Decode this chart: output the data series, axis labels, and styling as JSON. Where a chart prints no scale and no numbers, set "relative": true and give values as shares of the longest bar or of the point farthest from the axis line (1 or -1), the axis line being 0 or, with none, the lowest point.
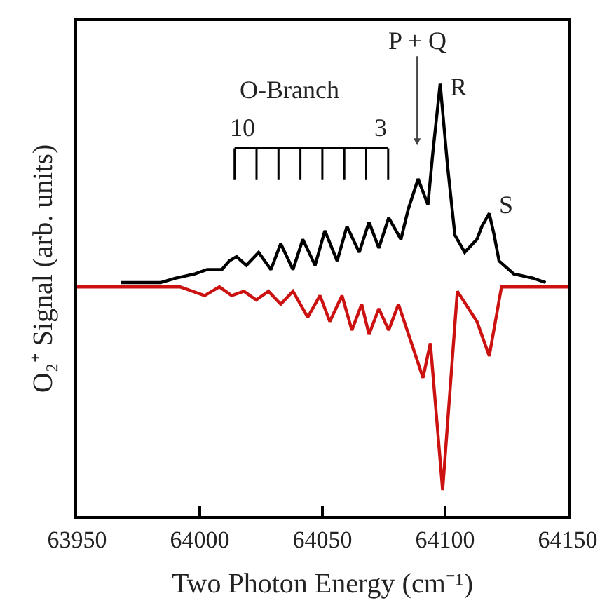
{
  "chart_data": {
    "type": "line",
    "relative": true,
    "xlabel": "Two Photon Energy (cm⁻¹)",
    "ylabel": "O₂⁺ Signal (arb. units)",
    "xlim": [
      63950,
      64150
    ],
    "xticks": [
      63950,
      64000,
      64050,
      64100,
      64150
    ],
    "tick_labels": "x",
    "line_style": "solid",
    "marker": "none",
    "series": [
      {
        "color": "#000000",
        "x": [
          63968,
          63975,
          63984,
          63990,
          63998,
          64003,
          64009,
          64012,
          64015,
          64019,
          64024,
          64029,
          64033,
          64038,
          64042,
          64047,
          64051,
          64056,
          64060,
          64065,
          64069,
          64073,
          64077,
          64082,
          64085,
          64089,
          64093,
          64095,
          64098,
          64101,
          64104,
          64108,
          64113,
          64115,
          64118,
          64120,
          64122,
          64128,
          64136,
          64141
        ],
        "values": [
          0.54,
          0.54,
          0.54,
          0.55,
          0.56,
          0.57,
          0.57,
          0.59,
          0.6,
          0.58,
          0.61,
          0.57,
          0.63,
          0.57,
          0.64,
          0.58,
          0.66,
          0.59,
          0.67,
          0.61,
          0.68,
          0.62,
          0.69,
          0.64,
          0.71,
          0.78,
          0.72,
          0.84,
          1.0,
          0.81,
          0.65,
          0.61,
          0.64,
          0.67,
          0.7,
          0.65,
          0.59,
          0.56,
          0.55,
          0.54
        ]
      },
      {
        "color": "#cc1111",
        "x": [
          63950,
          63986,
          63992,
          64002,
          64008,
          64013,
          64018,
          64023,
          64028,
          64033,
          64038,
          64044,
          64049,
          64053,
          64058,
          64062,
          64066,
          64069,
          64073,
          64077,
          64081,
          64091,
          64094,
          64099,
          64105,
          64113,
          64118,
          64123,
          64126,
          64150
        ],
        "values": [
          0.53,
          0.53,
          0.53,
          0.51,
          0.53,
          0.51,
          0.52,
          0.5,
          0.52,
          0.49,
          0.52,
          0.46,
          0.51,
          0.45,
          0.51,
          0.43,
          0.49,
          0.42,
          0.48,
          0.43,
          0.49,
          0.32,
          0.4,
          0.06,
          0.52,
          0.45,
          0.37,
          0.53,
          0.53,
          0.53
        ]
      }
    ],
    "annotations": [
      "O-Branch",
      "10",
      "3",
      "P + Q",
      {
        "text": "R",
        "x": 64098,
        "y": 1.0
      },
      {
        "text": "S",
        "x": 64118,
        "y": 0.7
      }
    ]
  }
}
